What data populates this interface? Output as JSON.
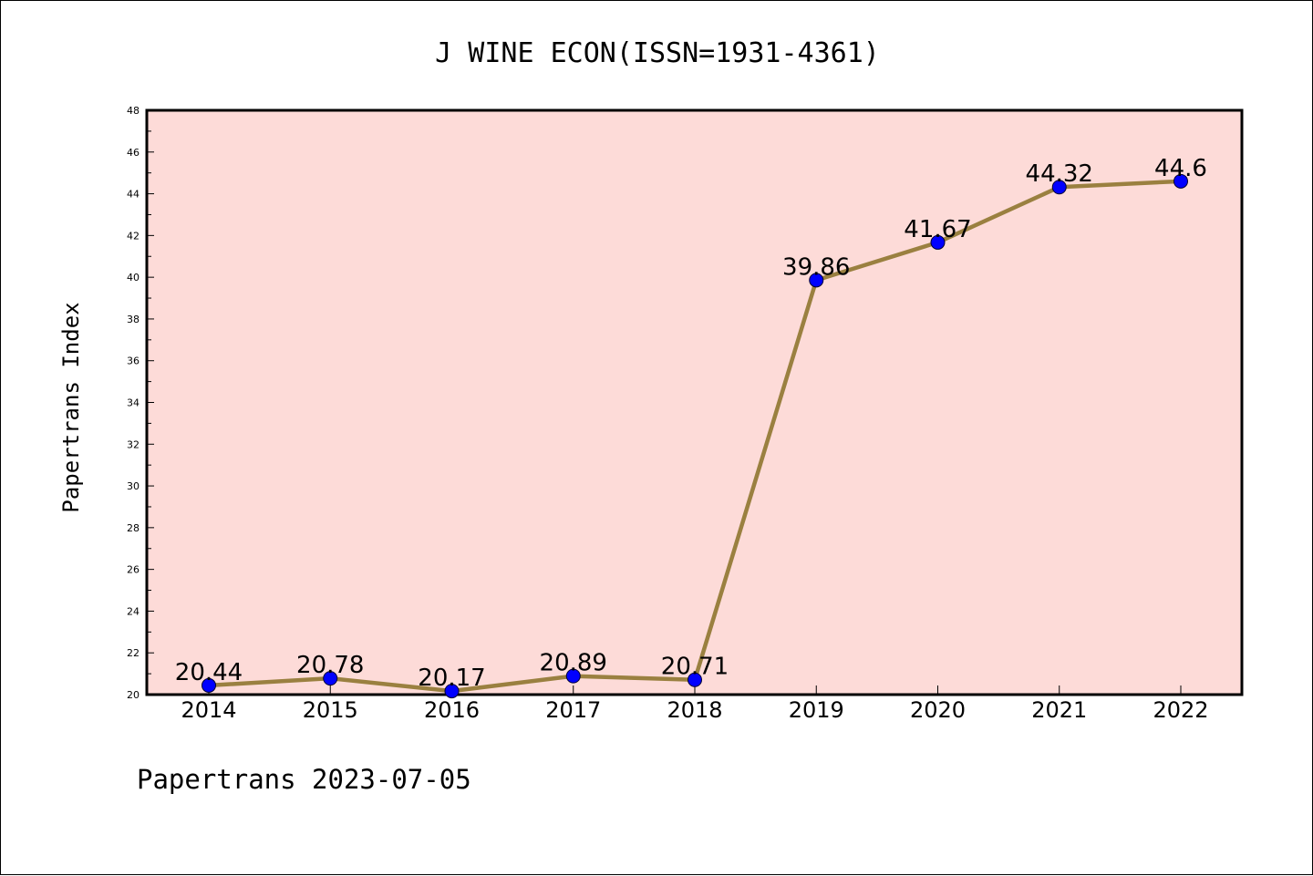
{
  "colors": {
    "plot_background": "#fddbd8",
    "line": "#9a8040",
    "marker": "#0000ff",
    "axis": "#000000"
  },
  "footer": "Papertrans 2023-07-05",
  "chart_data": {
    "type": "line",
    "title": "J WINE ECON(ISSN=1931-4361)",
    "xlabel": "",
    "ylabel": "Papertrans Index",
    "categories": [
      "2014",
      "2015",
      "2016",
      "2017",
      "2018",
      "2019",
      "2020",
      "2021",
      "2022"
    ],
    "series": [
      {
        "values": [
          20.44,
          20.78,
          20.17,
          20.89,
          20.71,
          39.86,
          41.67,
          44.32,
          44.6
        ],
        "labels": [
          "20.44",
          "20.78",
          "20.17",
          "20.89",
          "20.71",
          "39.86",
          "41.67",
          "44.32",
          "44.6"
        ]
      }
    ],
    "ylim": [
      20,
      48
    ],
    "yticks": [
      "20",
      "22",
      "24",
      "26",
      "28",
      "30",
      "32",
      "34",
      "36",
      "38",
      "40",
      "42",
      "44",
      "46",
      "48"
    ],
    "grid": false,
    "legend": "none",
    "markers": "circle"
  }
}
